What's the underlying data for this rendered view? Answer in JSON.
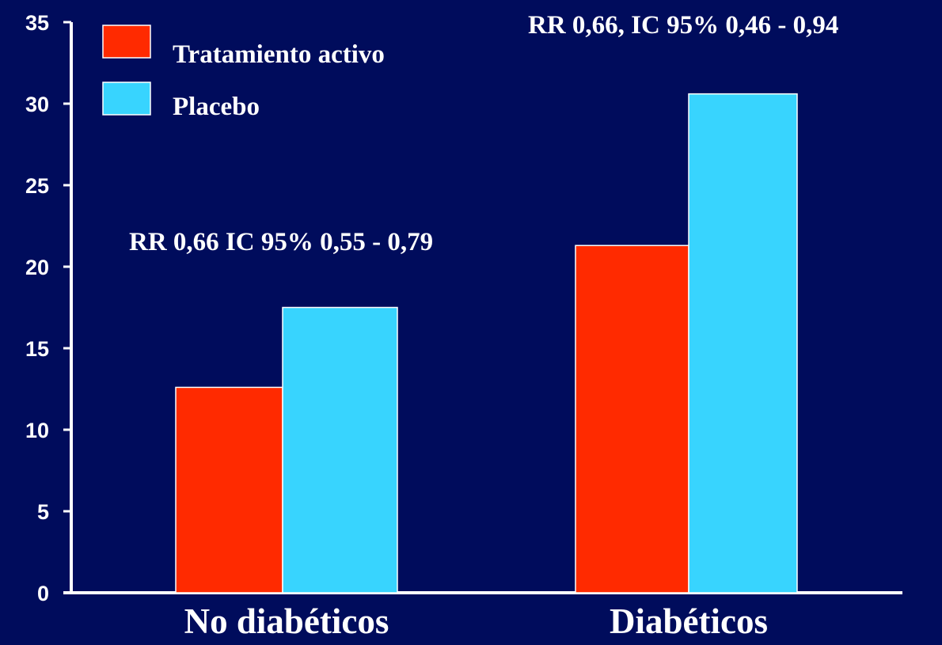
{
  "chart_data": {
    "type": "bar",
    "categories": [
      "No diabéticos",
      "Diabéticos"
    ],
    "series": [
      {
        "name": "Tratamiento activo",
        "color": "#ff2a00",
        "values": [
          12.6,
          21.3
        ]
      },
      {
        "name": "Placebo",
        "color": "#38d4fe",
        "values": [
          17.5,
          30.6
        ]
      }
    ],
    "ylim": [
      0,
      35
    ],
    "yticks": [
      0,
      5,
      10,
      15,
      20,
      25,
      30,
      35
    ],
    "annotations": [
      "RR 0,66 IC 95% 0,55 - 0,79",
      "RR 0,66, IC 95% 0,46 - 0,94"
    ],
    "legend_position": "top-left",
    "grid": false,
    "title": "",
    "xlabel": "",
    "ylabel": ""
  },
  "colors": {
    "background": "#000c5c",
    "axis": "#ffffff",
    "text": "#ffffff"
  }
}
